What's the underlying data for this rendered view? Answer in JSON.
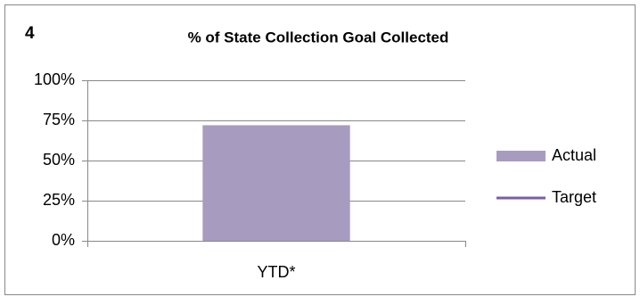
{
  "chart_data": {
    "type": "bar",
    "label": "4",
    "title": "% of State Collection Goal Collected",
    "categories": [
      "YTD*"
    ],
    "series": [
      {
        "name": "Actual",
        "color": "#a89bc0",
        "values": [
          72
        ]
      },
      {
        "name": "Target",
        "color": "#7b5ea7",
        "values": [
          null
        ],
        "kind": "line"
      }
    ],
    "ylim": [
      0,
      100
    ],
    "yticks": [
      {
        "value": 0,
        "label": "0%"
      },
      {
        "value": 25,
        "label": "25%"
      },
      {
        "value": 50,
        "label": "50%"
      },
      {
        "value": 75,
        "label": "75%"
      },
      {
        "value": 100,
        "label": "100%"
      }
    ],
    "grid": true,
    "legend": "right"
  }
}
